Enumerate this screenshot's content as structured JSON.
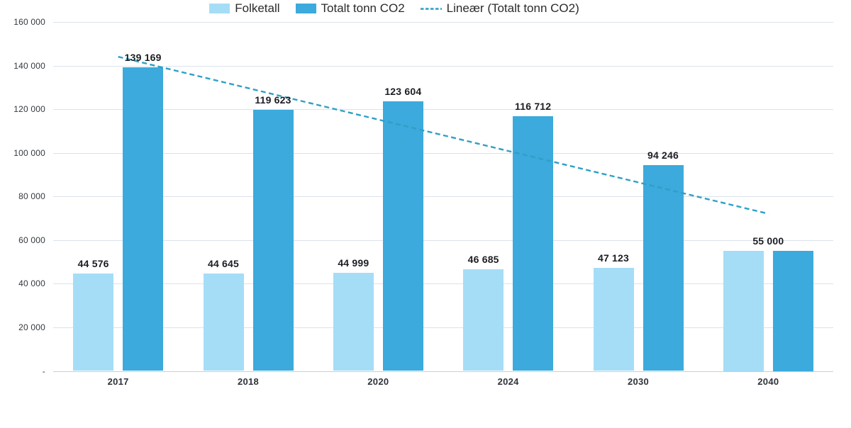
{
  "chart_data": {
    "type": "bar",
    "title": "",
    "categories": [
      "2017",
      "2018",
      "2020",
      "2024",
      "2030",
      "2040"
    ],
    "series": [
      {
        "name": "Folketall",
        "color": "#a5ddf7",
        "values": [
          44576,
          44645,
          44999,
          46685,
          47123,
          55000
        ],
        "data_labels": [
          "44 576",
          "44 645",
          "44 999",
          "46 685",
          "47 123",
          ""
        ]
      },
      {
        "name": "Totalt tonn CO2",
        "color": "#3caadc",
        "values": [
          139169,
          119623,
          123604,
          116712,
          94246,
          55000
        ],
        "data_labels": [
          "139 169",
          "119 623",
          "123 604",
          "116 712",
          "94 246",
          ""
        ]
      }
    ],
    "shared_labels": [
      {
        "category_index": 5,
        "text": "55 000",
        "value": 55000
      }
    ],
    "trendline": {
      "name": "Lineær (Totalt tonn CO2)",
      "color": "#2ea0c6",
      "style": "dashed",
      "start_value": 144049,
      "end_value": 72069
    },
    "y_axis": {
      "min": 0,
      "max": 160000,
      "step": 20000,
      "tick_labels": [
        "-",
        "20 000",
        "40 000",
        "60 000",
        "80 000",
        "100 000",
        "120 000",
        "140 000",
        "160 000"
      ]
    },
    "grid": true,
    "gridline_color": "#dae3eb",
    "axis_line_color": "#c7cfd6",
    "legend_position": "bottom",
    "legend": {
      "items": [
        {
          "label": "Folketall",
          "swatch": "rect",
          "color": "#a5ddf7"
        },
        {
          "label": "Totalt tonn CO2",
          "swatch": "rect",
          "color": "#3caadc"
        },
        {
          "label": "Lineær (Totalt tonn CO2)",
          "swatch": "dashed-line",
          "color": "#4aabcf"
        }
      ]
    }
  }
}
